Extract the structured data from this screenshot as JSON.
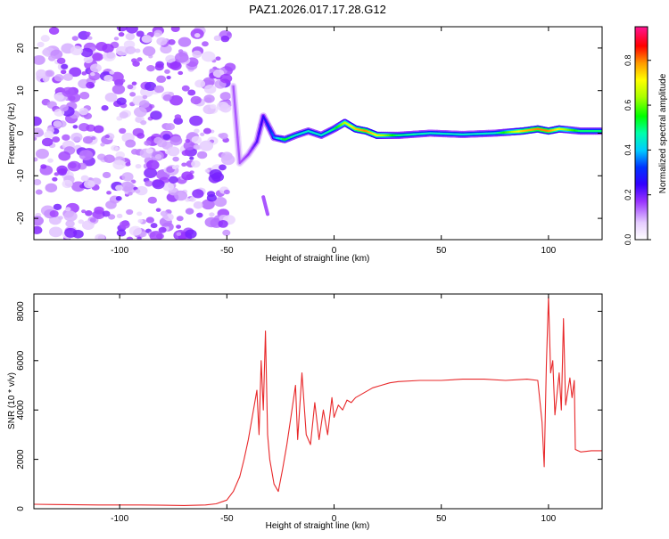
{
  "title": "PAZ1.2026.017.17.28.G12",
  "chart_data": [
    {
      "type": "heatmap",
      "title": "PAZ1.2026.017.17.28.G12",
      "xlabel": "Height of straight line (km)",
      "ylabel": "Frequency (Hz)",
      "xlim": [
        -140,
        125
      ],
      "ylim": [
        -25,
        25
      ],
      "xticks": [
        -100,
        -50,
        0,
        50,
        100
      ],
      "yticks": [
        -20,
        -10,
        0,
        10,
        20
      ],
      "colorbar": {
        "label": "Normalized spectral amplitude",
        "range": [
          0.0,
          0.95
        ],
        "ticks": [
          0.0,
          0.2,
          0.4,
          0.6,
          0.8
        ],
        "tick_labels": [
          "0.0",
          "0.2",
          "0.4",
          "0.6",
          "0.8"
        ]
      },
      "noise_region_x": [
        -140,
        -48
      ],
      "noise_amplitude_range": [
        0.05,
        0.2
      ],
      "signal_track": [
        {
          "x": -47,
          "freq": 11,
          "amp": 0.15
        },
        {
          "x": -44,
          "freq": -7,
          "amp": 0.15
        },
        {
          "x": -40,
          "freq": -5,
          "amp": 0.17
        },
        {
          "x": -36,
          "freq": -2,
          "amp": 0.22
        },
        {
          "x": -33,
          "freq": 4,
          "amp": 0.25
        },
        {
          "x": -28,
          "freq": -1,
          "amp": 0.35
        },
        {
          "x": -23,
          "freq": -1.5,
          "amp": 0.55
        },
        {
          "x": -18,
          "freq": -0.5,
          "amp": 0.45
        },
        {
          "x": -12,
          "freq": 0.5,
          "amp": 0.45
        },
        {
          "x": -6,
          "freq": -0.5,
          "amp": 0.45
        },
        {
          "x": 0,
          "freq": 1,
          "amp": 0.5
        },
        {
          "x": 5,
          "freq": 2.5,
          "amp": 0.65
        },
        {
          "x": 10,
          "freq": 1,
          "amp": 0.75
        },
        {
          "x": 15,
          "freq": 0.5,
          "amp": 0.8
        },
        {
          "x": 20,
          "freq": -0.5,
          "amp": 0.7
        },
        {
          "x": 30,
          "freq": -0.5,
          "amp": 0.5
        },
        {
          "x": 45,
          "freq": 0,
          "amp": 0.45
        },
        {
          "x": 60,
          "freq": -0.3,
          "amp": 0.45
        },
        {
          "x": 75,
          "freq": 0,
          "amp": 0.45
        },
        {
          "x": 88,
          "freq": 0.5,
          "amp": 0.75
        },
        {
          "x": 95,
          "freq": 1,
          "amp": 0.8
        },
        {
          "x": 100,
          "freq": 0.5,
          "amp": 0.8
        },
        {
          "x": 105,
          "freq": 1,
          "amp": 0.7
        },
        {
          "x": 115,
          "freq": 0.5,
          "amp": 0.5
        },
        {
          "x": 125,
          "freq": 0.5,
          "amp": 0.5
        }
      ],
      "outlier_blob": {
        "x": -32,
        "freq_range": [
          -19,
          -15
        ],
        "amp": 0.15
      }
    },
    {
      "type": "line",
      "xlabel": "Height of straight line (km)",
      "ylabel": "SNR (10 * v/v)",
      "xlim": [
        -140,
        125
      ],
      "ylim": [
        0,
        8700
      ],
      "xticks": [
        -100,
        -50,
        0,
        50,
        100
      ],
      "yticks": [
        0,
        2000,
        4000,
        6000,
        8000
      ],
      "series_color": "#e8282a",
      "series": [
        {
          "name": "SNR",
          "points": [
            [
              -140,
              180
            ],
            [
              -130,
              170
            ],
            [
              -120,
              160
            ],
            [
              -110,
              150
            ],
            [
              -100,
              150
            ],
            [
              -90,
              150
            ],
            [
              -80,
              140
            ],
            [
              -70,
              130
            ],
            [
              -60,
              150
            ],
            [
              -55,
              200
            ],
            [
              -50,
              350
            ],
            [
              -47,
              700
            ],
            [
              -44,
              1300
            ],
            [
              -42,
              2000
            ],
            [
              -40,
              2800
            ],
            [
              -38,
              3800
            ],
            [
              -36,
              4800
            ],
            [
              -35,
              3000
            ],
            [
              -34,
              6000
            ],
            [
              -33,
              4000
            ],
            [
              -32,
              7200
            ],
            [
              -31,
              3000
            ],
            [
              -30,
              2000
            ],
            [
              -28,
              1000
            ],
            [
              -26,
              700
            ],
            [
              -24,
              1600
            ],
            [
              -22,
              2600
            ],
            [
              -20,
              3800
            ],
            [
              -18,
              5000
            ],
            [
              -17,
              2800
            ],
            [
              -15,
              5500
            ],
            [
              -13,
              3000
            ],
            [
              -11,
              2600
            ],
            [
              -9,
              4300
            ],
            [
              -7,
              2800
            ],
            [
              -5,
              4000
            ],
            [
              -3,
              3000
            ],
            [
              -1,
              4500
            ],
            [
              0,
              3700
            ],
            [
              2,
              4200
            ],
            [
              4,
              4000
            ],
            [
              6,
              4400
            ],
            [
              8,
              4300
            ],
            [
              10,
              4500
            ],
            [
              14,
              4700
            ],
            [
              18,
              4900
            ],
            [
              22,
              5000
            ],
            [
              26,
              5100
            ],
            [
              30,
              5150
            ],
            [
              40,
              5200
            ],
            [
              50,
              5200
            ],
            [
              60,
              5250
            ],
            [
              70,
              5250
            ],
            [
              80,
              5200
            ],
            [
              90,
              5250
            ],
            [
              95,
              5200
            ],
            [
              97,
              3500
            ],
            [
              98,
              1700
            ],
            [
              99,
              5800
            ],
            [
              100,
              8600
            ],
            [
              101,
              5500
            ],
            [
              102,
              6000
            ],
            [
              103,
              3800
            ],
            [
              105,
              5500
            ],
            [
              106,
              4000
            ],
            [
              107,
              7700
            ],
            [
              108,
              4200
            ],
            [
              110,
              5300
            ],
            [
              111,
              4500
            ],
            [
              112,
              5200
            ],
            [
              112.5,
              2400
            ],
            [
              115,
              2300
            ],
            [
              120,
              2350
            ],
            [
              125,
              2350
            ]
          ]
        }
      ]
    }
  ]
}
